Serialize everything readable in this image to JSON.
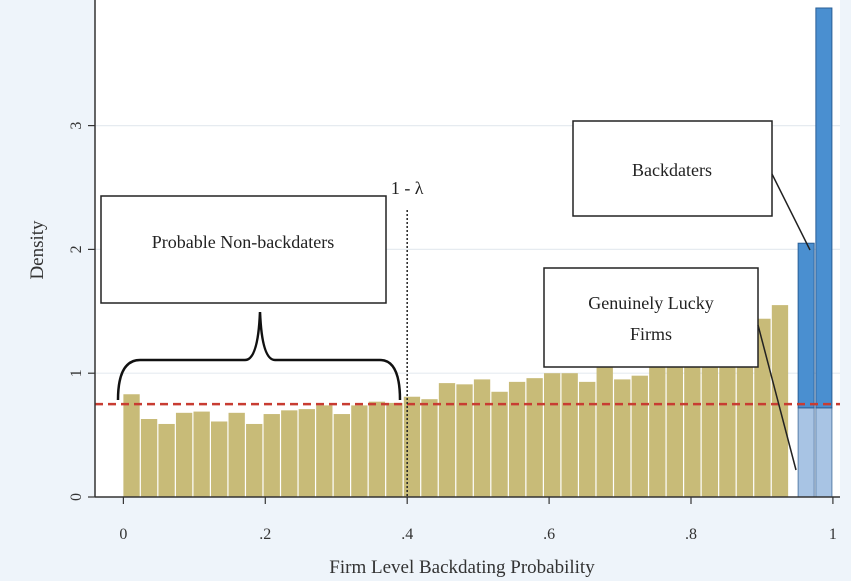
{
  "chart_data": {
    "type": "bar",
    "xlabel": "Firm Level Backdating Probability",
    "ylabel": "Density",
    "xlim": [
      -0.04,
      1.01
    ],
    "ylim": [
      0,
      3.95
    ],
    "x_ticks": [
      {
        "value": 0,
        "label": "0"
      },
      {
        "value": 0.2,
        "label": ".2"
      },
      {
        "value": 0.4,
        "label": ".4"
      },
      {
        "value": 0.6,
        "label": ".6"
      },
      {
        "value": 0.8,
        "label": ".8"
      },
      {
        "value": 1,
        "label": "1"
      }
    ],
    "y_ticks": [
      {
        "value": 0,
        "label": "0"
      },
      {
        "value": 1,
        "label": "1"
      },
      {
        "value": 2,
        "label": "2"
      },
      {
        "value": 3,
        "label": "3"
      }
    ],
    "grid": true,
    "bin_width": 0.0247,
    "histogram": {
      "x_start": 0,
      "color": "#c8bb78",
      "values": [
        0.83,
        0.63,
        0.59,
        0.68,
        0.69,
        0.61,
        0.68,
        0.59,
        0.67,
        0.7,
        0.71,
        0.74,
        0.67,
        0.74,
        0.77,
        0.76,
        0.81,
        0.79,
        0.92,
        0.91,
        0.95,
        0.85,
        0.93,
        0.96,
        1.0,
        1.0,
        0.93,
        1.06,
        0.95,
        0.98,
        1.05,
        1.08,
        1.11,
        1.25,
        1.3,
        1.38,
        1.44,
        1.55
      ]
    },
    "stacked_bars": [
      {
        "x": 0.951,
        "lower": 0.72,
        "total": 2.05
      },
      {
        "x": 0.976,
        "lower": 0.72,
        "total": 3.95
      }
    ],
    "stacked_colors": {
      "lower": "#a8c4e4",
      "upper": "#4a8fd0"
    },
    "reference_line": {
      "y": 0.75,
      "color": "#c83c32"
    },
    "lambda_line": {
      "x": 0.4,
      "label": "1 - λ"
    },
    "annotations": [
      {
        "text": "Probable Non-backdaters"
      },
      {
        "text": "Backdaters"
      },
      {
        "text": [
          "Genuinely Lucky",
          "Firms"
        ]
      }
    ]
  }
}
